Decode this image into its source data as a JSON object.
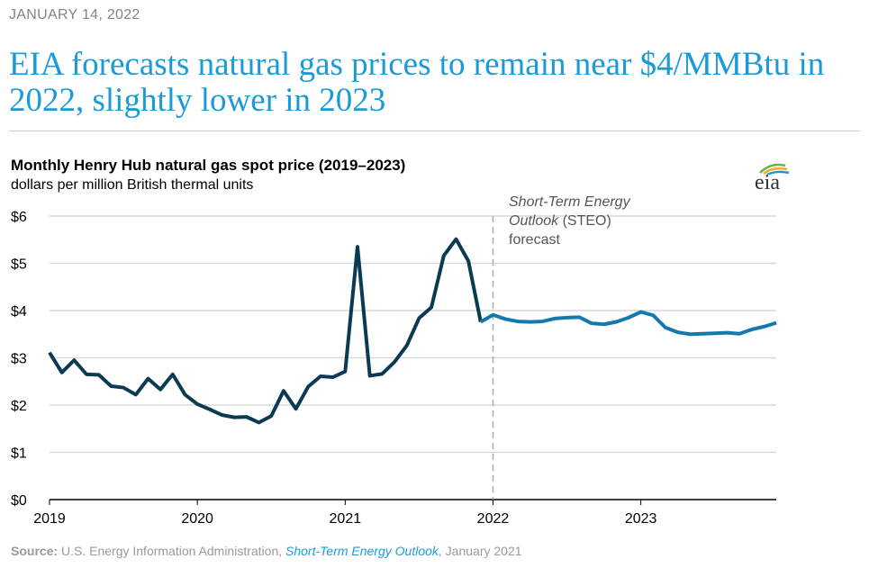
{
  "date": "JANUARY 14, 2022",
  "headline": "EIA forecasts natural gas prices to remain near $4/MMBtu in 2022, slightly lower in 2023",
  "logo_text": "eia",
  "source": {
    "label": "Source:",
    "text1": " U.S. Energy Information Administration, ",
    "link": "Short-Term Energy Outlook",
    "text2": ", January 2021"
  },
  "chart_data": {
    "type": "line",
    "title": "Monthly Henry Hub natural gas spot price (2019–2023)",
    "subtitle": "dollars per million British thermal units",
    "ylim": [
      0,
      6
    ],
    "yticks": [
      "$0",
      "$1",
      "$2",
      "$3",
      "$4",
      "$5",
      "$6"
    ],
    "xticks": [
      "2019",
      "2020",
      "2021",
      "2022",
      "2023"
    ],
    "grid": true,
    "annotation": {
      "italic": "Short-Term Energy Outlook",
      "rest": " (STEO)",
      "line3": "forecast",
      "italic1": "Short-Term Energy",
      "italic2": "Outlook"
    },
    "forecast_start": "2022-01",
    "colors": {
      "history": "#0b3a53",
      "forecast": "#1479ad"
    },
    "start_month": "2019-01",
    "values": [
      3.11,
      2.69,
      2.95,
      2.65,
      2.64,
      2.4,
      2.37,
      2.22,
      2.56,
      2.33,
      2.65,
      2.22,
      2.02,
      1.91,
      1.79,
      1.74,
      1.75,
      1.63,
      1.77,
      2.3,
      1.92,
      2.39,
      2.61,
      2.59,
      2.71,
      5.35,
      2.62,
      2.66,
      2.91,
      3.26,
      3.84,
      4.07,
      5.16,
      5.51,
      5.05,
      3.76,
      3.91,
      3.82,
      3.77,
      3.76,
      3.77,
      3.83,
      3.85,
      3.86,
      3.73,
      3.71,
      3.76,
      3.85,
      3.97,
      3.9,
      3.64,
      3.54,
      3.5,
      3.51,
      3.52,
      3.53,
      3.51,
      3.6,
      3.66,
      3.74
    ]
  }
}
